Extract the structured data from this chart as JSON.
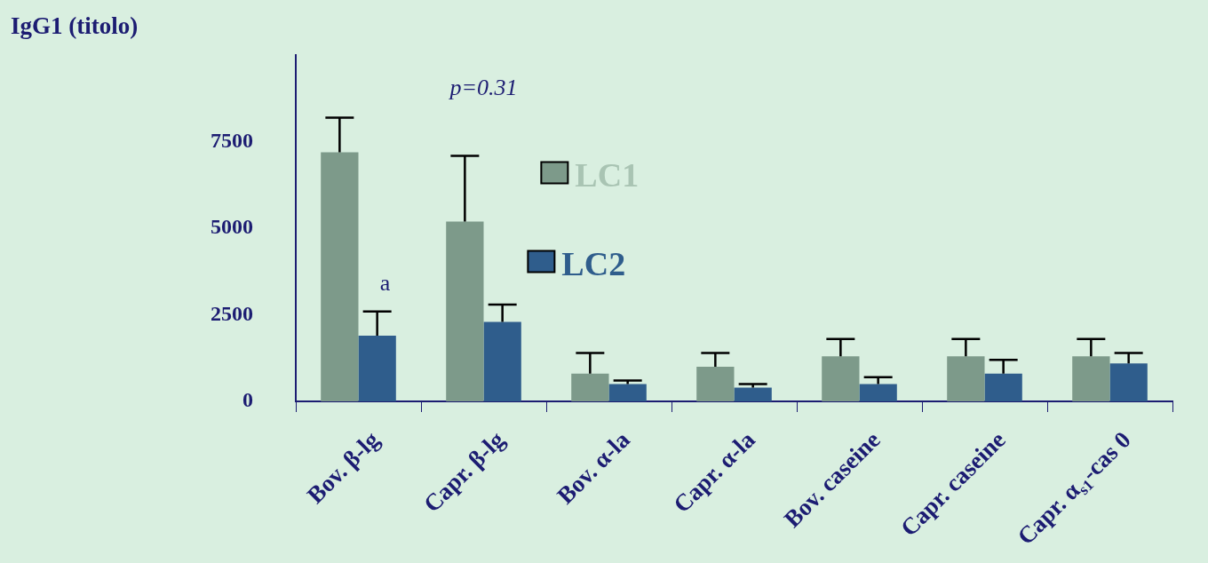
{
  "chart_data": {
    "type": "bar",
    "ylabel": "IgG1 (titolo)",
    "categories": [
      "Bov. β-lg",
      "Capr. β-lg",
      "Bov. α-la",
      "Capr. α-la",
      "Bov. caseine",
      "Capr. caseine",
      "Capr. α$_{s1}$-cas 0"
    ],
    "series": [
      {
        "name": "LC1",
        "color": "#7d9a8a",
        "values": [
          7200,
          5200,
          800,
          1000,
          1300,
          1300,
          1300
        ],
        "errors": [
          [
            7200,
            8200
          ],
          [
            5200,
            7100
          ],
          [
            800,
            1400
          ],
          [
            1000,
            1400
          ],
          [
            1300,
            1800
          ],
          [
            1300,
            1800
          ],
          [
            1300,
            1800
          ]
        ]
      },
      {
        "name": "LC2",
        "color": "#2f5d8c",
        "values": [
          1900,
          2300,
          500,
          400,
          500,
          800,
          1100
        ],
        "errors": [
          [
            1900,
            2600
          ],
          [
            2300,
            2800
          ],
          [
            500,
            600
          ],
          [
            400,
            500
          ],
          [
            500,
            700
          ],
          [
            800,
            1200
          ],
          [
            1100,
            1400
          ]
        ]
      }
    ],
    "ylim": [
      0,
      10000
    ],
    "yticks": [
      0,
      2500,
      5000,
      7500
    ],
    "grid": false,
    "legend": "top",
    "annotations": [
      "a",
      "p=0.31"
    ]
  }
}
